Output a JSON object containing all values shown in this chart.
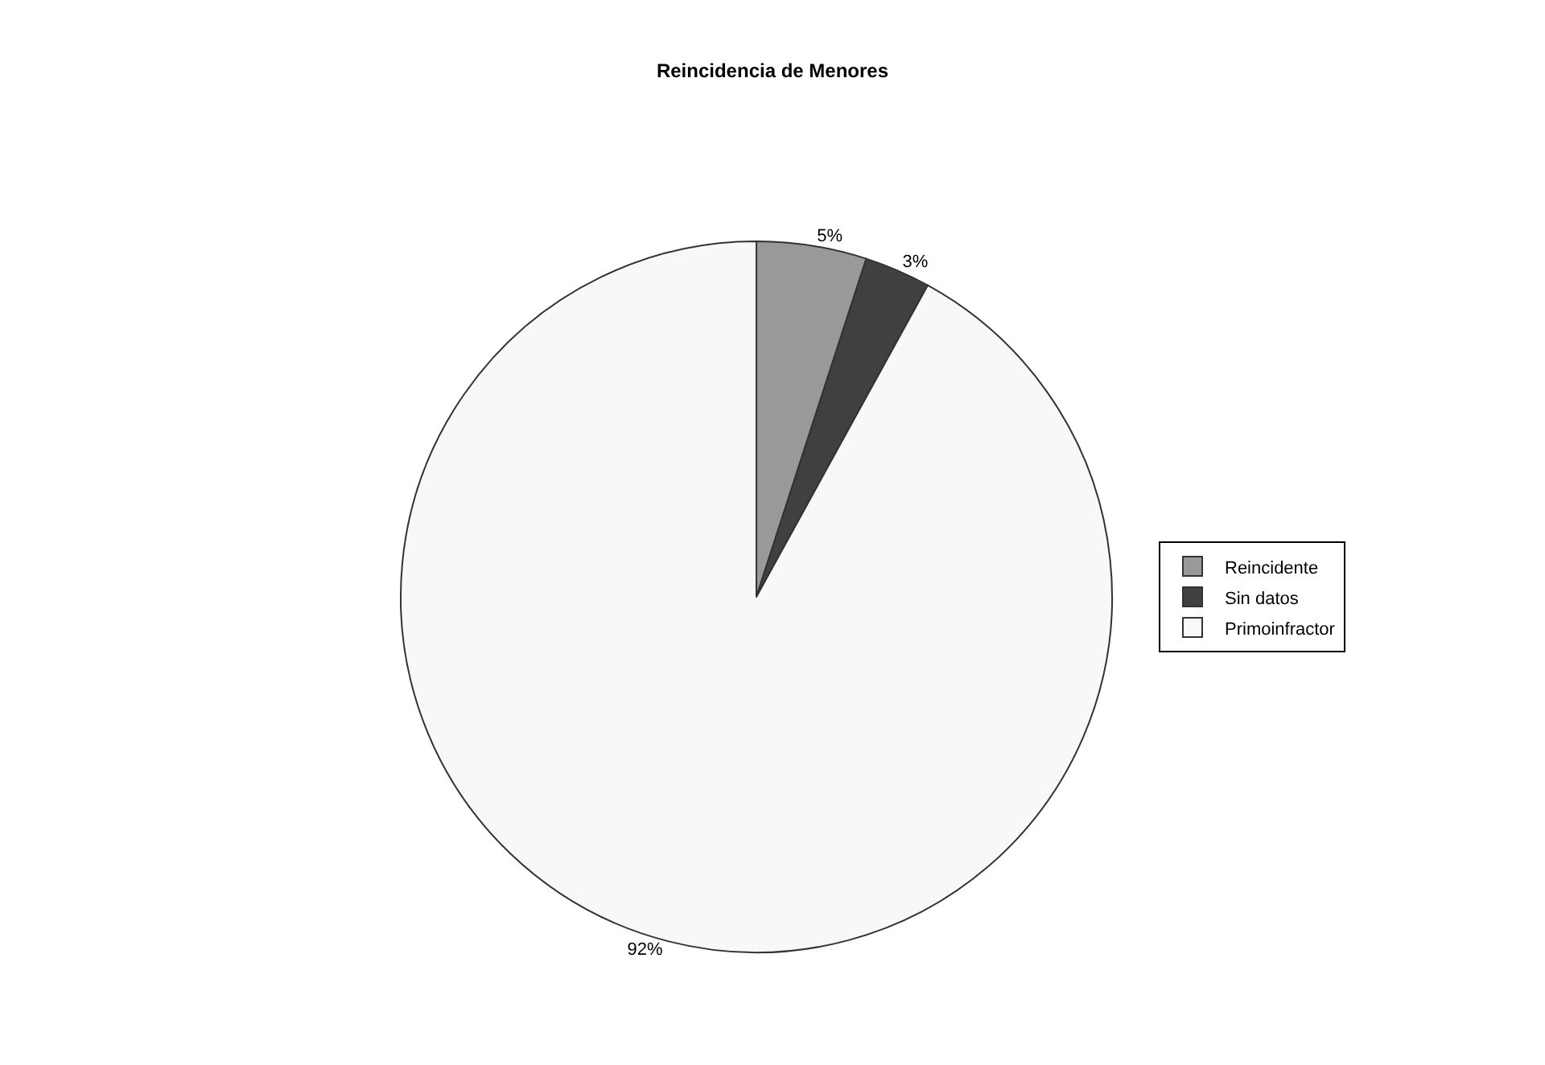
{
  "chart_data": {
    "type": "pie",
    "title": "Reincidencia de Menores",
    "categories": [
      "Reincidente",
      "Sin datos",
      "Primoinfractor"
    ],
    "values": [
      5,
      3,
      92
    ],
    "colors": [
      "#999999",
      "#404040",
      "#f8f8f8"
    ],
    "value_labels": [
      "5%",
      "3%",
      "92%"
    ],
    "legend": "right"
  }
}
